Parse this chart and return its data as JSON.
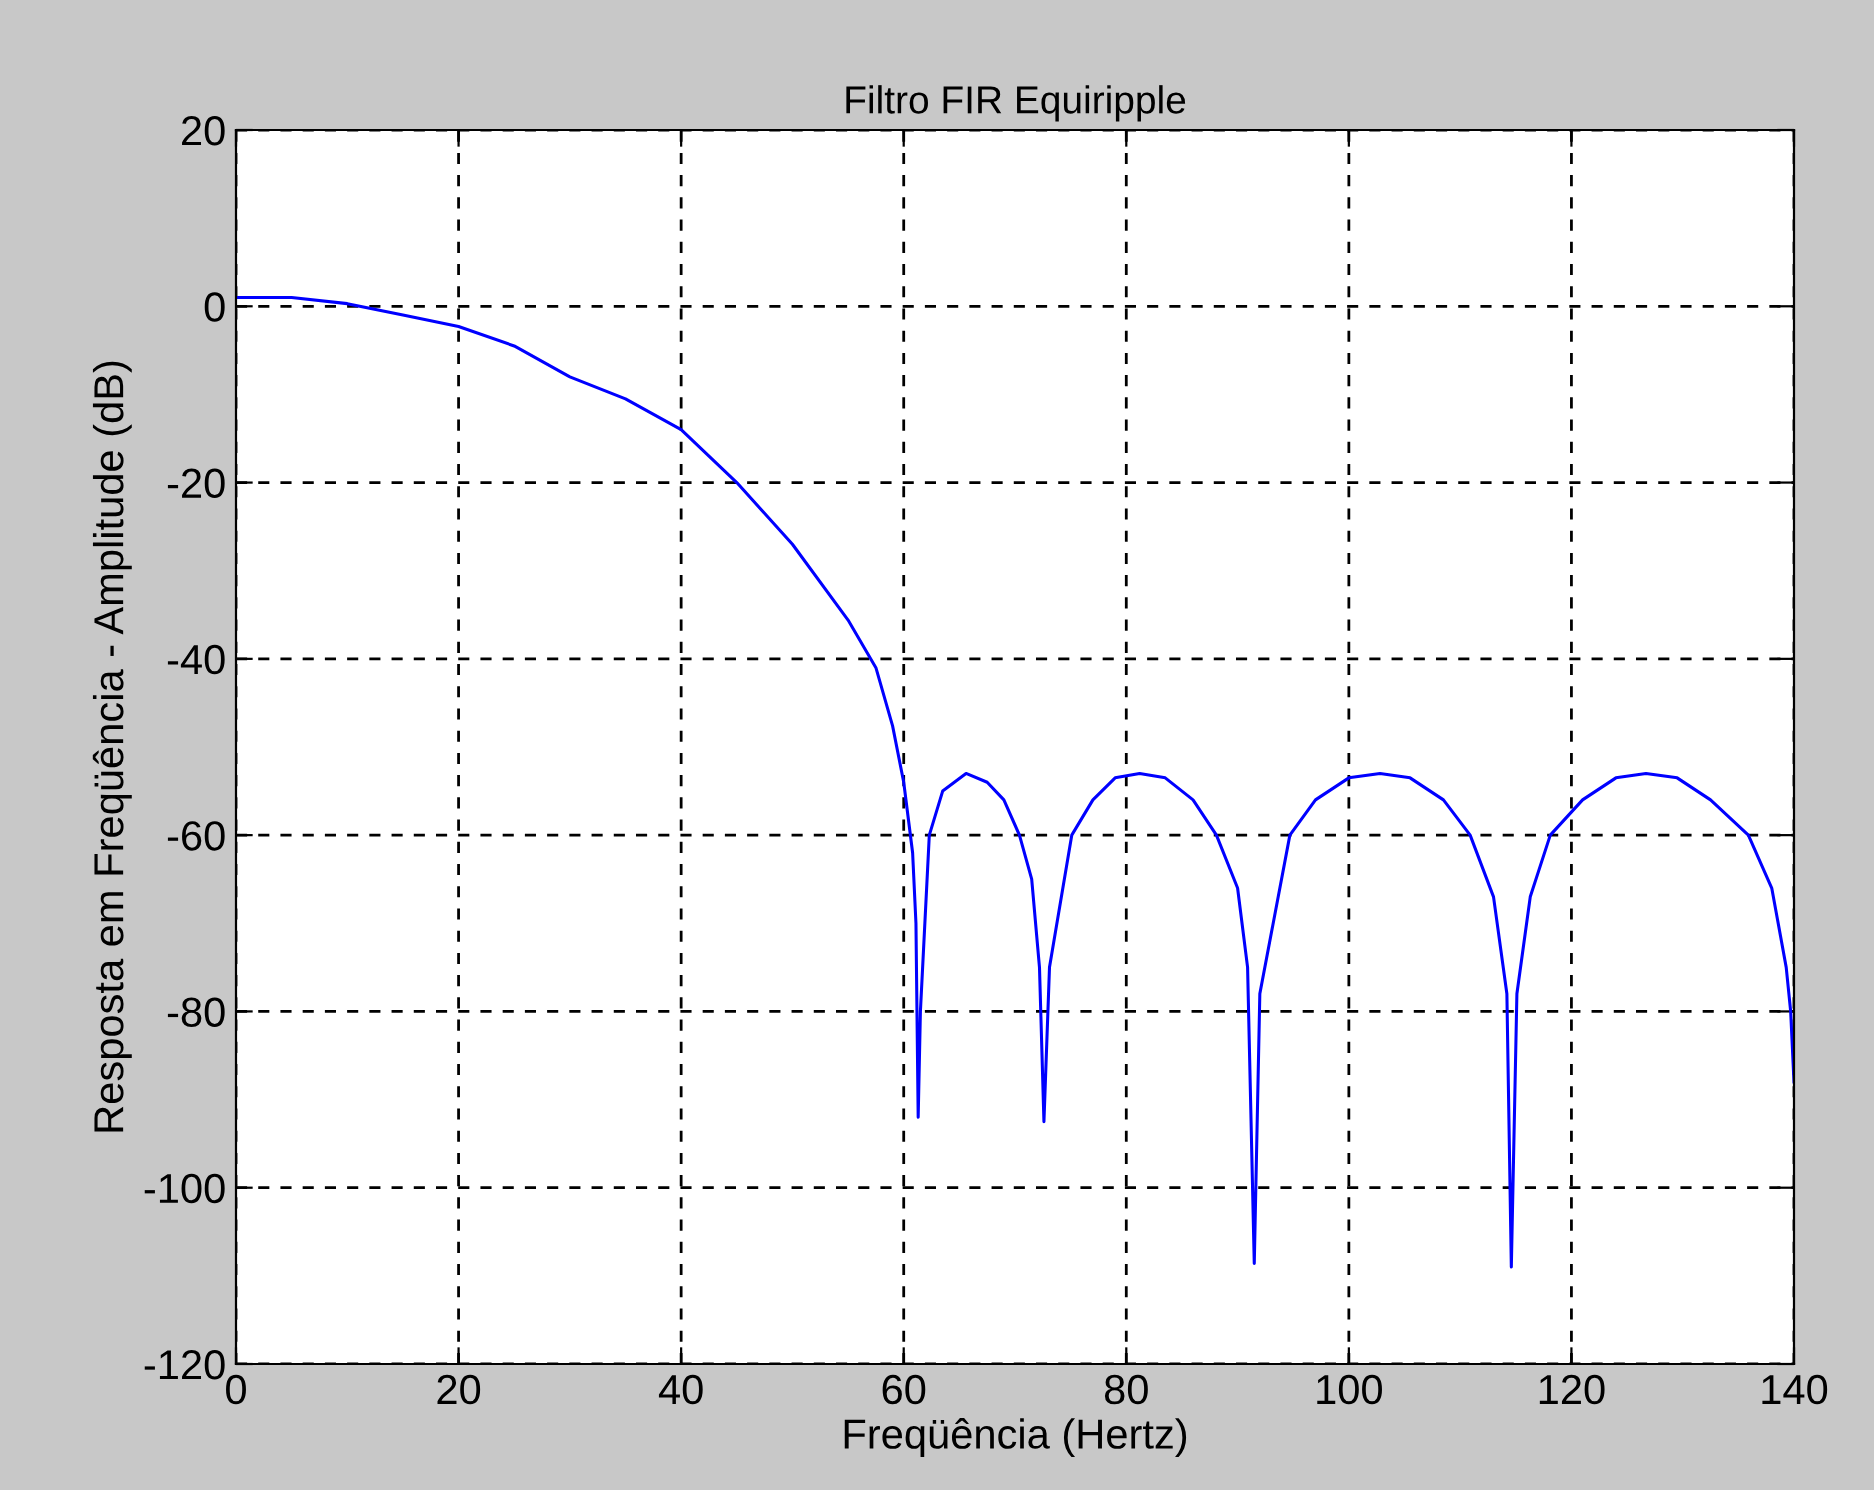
{
  "chart_data": {
    "type": "line",
    "title": "Filtro FIR Equiripple",
    "xlabel": "Freqüência (Hertz)",
    "ylabel": "Resposta em Freqüência - Amplitude (dB)",
    "xlim": [
      0,
      140
    ],
    "ylim": [
      -120,
      20
    ],
    "xticks": [
      0,
      20,
      40,
      60,
      80,
      100,
      120,
      140
    ],
    "yticks": [
      -120,
      -100,
      -80,
      -60,
      -40,
      -20,
      0,
      20
    ],
    "grid": true,
    "legend": false,
    "series": [
      {
        "color": "#0000ff",
        "x": [
          0,
          5,
          10,
          15,
          20,
          25,
          30,
          35,
          40,
          45,
          50,
          55,
          57.5,
          59,
          60,
          60.8,
          61.1,
          61.3,
          61.5,
          62.3,
          63.5,
          65.6,
          67.5,
          69,
          70.4,
          71.5,
          72.2,
          72.6,
          73.1,
          75.1,
          77,
          79,
          81.2,
          83.5,
          86,
          88.1,
          90,
          90.9,
          91.5,
          92.0,
          94.7,
          97,
          100,
          102.8,
          105.5,
          108.5,
          110.9,
          113,
          114.2,
          114.6,
          115.1,
          116.3,
          118.1,
          121,
          124,
          126.7,
          129.5,
          132.5,
          135.9,
          138,
          139.3,
          139.7,
          140
        ],
        "values": [
          1,
          1,
          0.3,
          -1,
          -2.3,
          -4.5,
          -8,
          -10.5,
          -14,
          -20,
          -27,
          -35.6,
          -41,
          -47.6,
          -54,
          -62,
          -70,
          -92,
          -80,
          -60,
          -55,
          -53,
          -54,
          -56,
          -60,
          -65,
          -75,
          -92.5,
          -75,
          -60,
          -56,
          -53.5,
          -53,
          -53.5,
          -56,
          -60,
          -66,
          -75,
          -108.6,
          -78,
          -60,
          -56,
          -53.5,
          -53,
          -53.5,
          -56,
          -60,
          -67,
          -78,
          -109,
          -78,
          -67,
          -60,
          -56,
          -53.5,
          -53,
          -53.5,
          -56,
          -60,
          -66,
          -75,
          -80,
          -88
        ]
      }
    ]
  }
}
